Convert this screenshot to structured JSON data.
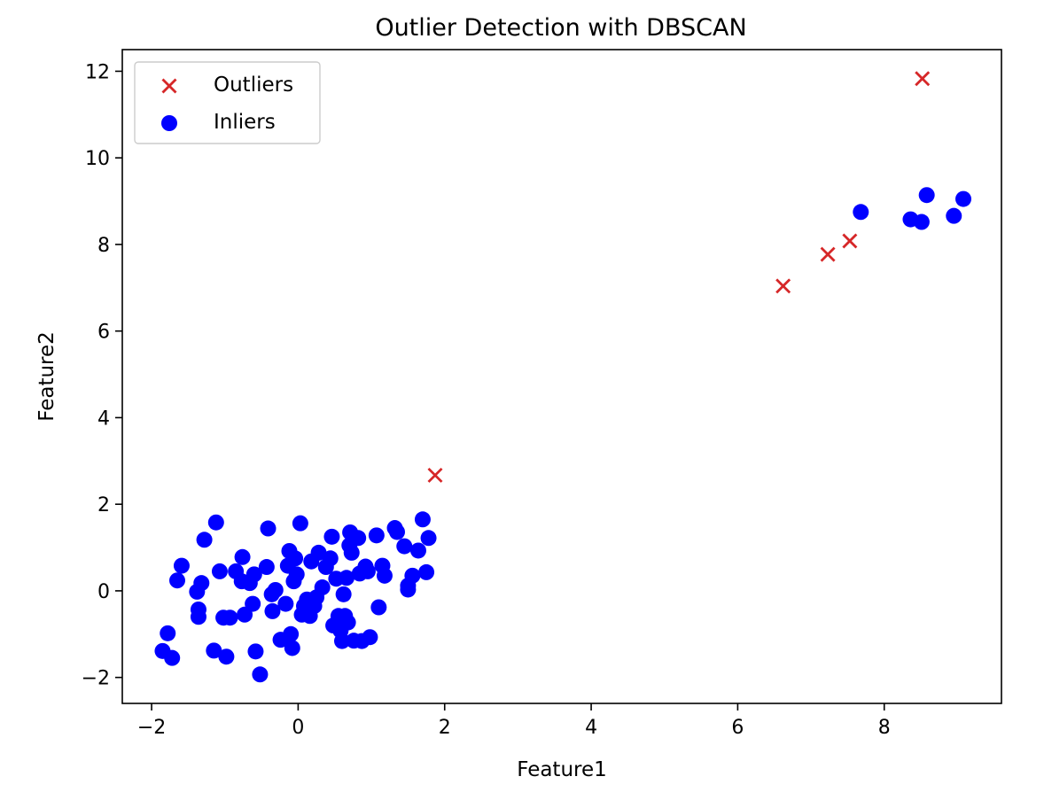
{
  "chart_data": {
    "type": "scatter",
    "title": "Outlier Detection with DBSCAN",
    "xlabel": "Feature1",
    "ylabel": "Feature2",
    "xlim": [
      -2.4,
      9.6
    ],
    "ylim": [
      -2.6,
      12.5
    ],
    "xticks": [
      -2,
      0,
      2,
      4,
      6,
      8
    ],
    "yticks": [
      -2,
      0,
      2,
      4,
      6,
      8,
      10,
      12
    ],
    "xtick_labels": [
      "−2",
      "0",
      "2",
      "4",
      "6",
      "8"
    ],
    "ytick_labels": [
      "−2",
      "0",
      "2",
      "4",
      "6",
      "8",
      "10",
      "12"
    ],
    "grid": false,
    "legend_position": "top-left",
    "series": [
      {
        "name": "Outliers",
        "marker": "x",
        "color": "#d62728",
        "points": [
          [
            1.87,
            2.67
          ],
          [
            6.62,
            7.04
          ],
          [
            7.23,
            7.77
          ],
          [
            7.53,
            8.08
          ],
          [
            8.52,
            11.83
          ]
        ]
      },
      {
        "name": "Inliers",
        "marker": "circle",
        "color": "#0000ff",
        "points": [
          [
            -1.85,
            -1.39
          ],
          [
            -1.72,
            -1.55
          ],
          [
            -1.78,
            -0.98
          ],
          [
            -1.65,
            0.24
          ],
          [
            -1.59,
            0.58
          ],
          [
            -1.38,
            -0.02
          ],
          [
            -1.36,
            -0.43
          ],
          [
            -1.36,
            -0.6
          ],
          [
            -1.32,
            0.18
          ],
          [
            -1.28,
            1.18
          ],
          [
            -1.12,
            1.58
          ],
          [
            -1.15,
            -1.38
          ],
          [
            -1.07,
            0.45
          ],
          [
            -1.02,
            -0.62
          ],
          [
            -0.98,
            -1.52
          ],
          [
            -0.93,
            -0.62
          ],
          [
            -0.85,
            0.45
          ],
          [
            -0.77,
            0.22
          ],
          [
            -0.76,
            0.78
          ],
          [
            -0.73,
            -0.55
          ],
          [
            -0.66,
            0.18
          ],
          [
            -0.62,
            -0.3
          ],
          [
            -0.6,
            0.38
          ],
          [
            -0.58,
            -1.4
          ],
          [
            -0.52,
            -1.93
          ],
          [
            -0.43,
            0.55
          ],
          [
            -0.41,
            1.44
          ],
          [
            -0.36,
            -0.08
          ],
          [
            -0.35,
            -0.47
          ],
          [
            -0.31,
            0.02
          ],
          [
            -0.24,
            -1.13
          ],
          [
            -0.17,
            -0.3
          ],
          [
            -0.14,
            0.58
          ],
          [
            -0.12,
            0.92
          ],
          [
            -0.1,
            -1.0
          ],
          [
            -0.08,
            -1.32
          ],
          [
            -0.06,
            0.22
          ],
          [
            -0.04,
            0.75
          ],
          [
            -0.02,
            0.38
          ],
          [
            0.03,
            1.56
          ],
          [
            0.05,
            -0.55
          ],
          [
            0.08,
            -0.35
          ],
          [
            0.12,
            -0.2
          ],
          [
            0.16,
            -0.58
          ],
          [
            0.18,
            0.68
          ],
          [
            0.22,
            -0.35
          ],
          [
            0.25,
            -0.15
          ],
          [
            0.28,
            0.88
          ],
          [
            0.33,
            0.08
          ],
          [
            0.38,
            0.55
          ],
          [
            0.44,
            0.75
          ],
          [
            0.46,
            1.25
          ],
          [
            0.48,
            -0.8
          ],
          [
            0.52,
            0.28
          ],
          [
            0.55,
            -0.58
          ],
          [
            0.58,
            -0.92
          ],
          [
            0.6,
            -1.16
          ],
          [
            0.62,
            -0.08
          ],
          [
            0.64,
            -0.58
          ],
          [
            0.66,
            0.3
          ],
          [
            0.68,
            -0.73
          ],
          [
            0.7,
            1.05
          ],
          [
            0.71,
            1.35
          ],
          [
            0.73,
            0.88
          ],
          [
            0.76,
            -1.15
          ],
          [
            0.82,
            1.22
          ],
          [
            0.84,
            0.4
          ],
          [
            0.87,
            -1.16
          ],
          [
            0.92,
            0.56
          ],
          [
            0.95,
            0.45
          ],
          [
            0.98,
            -1.07
          ],
          [
            1.07,
            1.28
          ],
          [
            1.1,
            -0.38
          ],
          [
            1.15,
            0.58
          ],
          [
            1.18,
            0.35
          ],
          [
            1.32,
            1.45
          ],
          [
            1.35,
            1.36
          ],
          [
            1.45,
            1.03
          ],
          [
            1.5,
            0.03
          ],
          [
            1.5,
            0.12
          ],
          [
            1.56,
            0.35
          ],
          [
            1.64,
            0.93
          ],
          [
            1.7,
            1.65
          ],
          [
            1.75,
            0.43
          ],
          [
            1.78,
            1.22
          ],
          [
            7.68,
            8.75
          ],
          [
            8.36,
            8.58
          ],
          [
            8.51,
            8.52
          ],
          [
            8.58,
            9.14
          ],
          [
            8.95,
            8.66
          ],
          [
            9.08,
            9.05
          ]
        ]
      }
    ]
  }
}
